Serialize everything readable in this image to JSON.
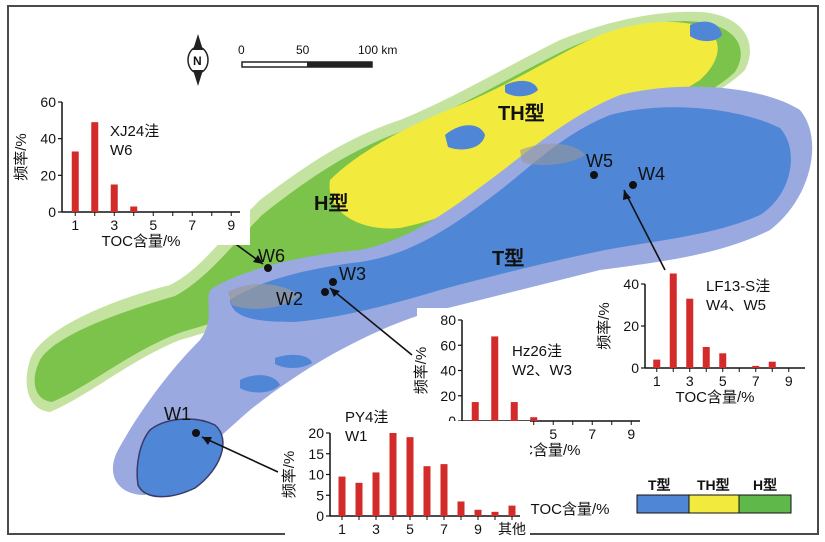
{
  "map": {
    "zone_labels": {
      "th": "TH型",
      "h": "H型",
      "t": "T型"
    },
    "wells": [
      {
        "id": "W1",
        "label": "W1"
      },
      {
        "id": "W2",
        "label": "W2"
      },
      {
        "id": "W3",
        "label": "W3"
      },
      {
        "id": "W4",
        "label": "W4"
      },
      {
        "id": "W5",
        "label": "W5"
      },
      {
        "id": "W6",
        "label": "W6"
      }
    ],
    "north_label": "N",
    "scale": {
      "ticks": [
        "0",
        "50",
        "100 km"
      ]
    },
    "legend": [
      {
        "label": "T型",
        "color": "#4f86d6"
      },
      {
        "label": "TH型",
        "color": "#f2ea3c"
      },
      {
        "label": "H型",
        "color": "#5fb84a"
      }
    ],
    "colors": {
      "t_zone": "#4f86d6",
      "t_halo": "#9aa9e0",
      "th_zone": "#f2ea3c",
      "h_zone": "#7cc34c",
      "h_halo": "#c5e3a0",
      "bar": "#d32a2a",
      "frame": "#4a4a4a"
    }
  },
  "chart_data": [
    {
      "type": "bar",
      "title": "XJ24洼",
      "subtitle": "W6",
      "xlabel": "TOC含量/%",
      "ylabel": "频率/%",
      "ylim": [
        0,
        60
      ],
      "yticks": [
        "0",
        "20",
        "40",
        "60"
      ],
      "xticks": [
        "1",
        "3",
        "5",
        "7",
        "9"
      ],
      "categories": [
        "1",
        "2",
        "3",
        "4",
        "5",
        "6",
        "7",
        "8",
        "9"
      ],
      "values": [
        33,
        49,
        15,
        3,
        0,
        0,
        0,
        0,
        0
      ]
    },
    {
      "type": "bar",
      "title": "Hz26洼",
      "subtitle": "W2、W3",
      "xlabel": "TOC含量/%",
      "ylabel": "频率/%",
      "ylim": [
        0,
        80
      ],
      "yticks": [
        "0",
        "20",
        "40",
        "60",
        "80"
      ],
      "xticks": [
        "1",
        "3",
        "5",
        "7",
        "9"
      ],
      "categories": [
        "1",
        "2",
        "3",
        "4",
        "5",
        "6",
        "7",
        "8",
        "9"
      ],
      "values": [
        15,
        67,
        15,
        3,
        0,
        0,
        0,
        0,
        0
      ]
    },
    {
      "type": "bar",
      "title": "LF13-S洼",
      "subtitle": "W4、W5",
      "xlabel": "TOC含量/%",
      "ylabel": "频率/%",
      "ylim": [
        0,
        40
      ],
      "yticks": [
        "0",
        "20",
        "40"
      ],
      "xticks": [
        "1",
        "3",
        "5",
        "7",
        "9"
      ],
      "categories": [
        "1",
        "2",
        "3",
        "4",
        "5",
        "6",
        "7",
        "8",
        "9"
      ],
      "values": [
        4,
        45,
        33,
        10,
        7,
        0,
        1,
        3,
        0
      ]
    },
    {
      "type": "bar",
      "title": "PY4洼",
      "subtitle": "W1",
      "xlabel": "TOC含量/%",
      "ylabel": "频率/%",
      "ylim": [
        0,
        20
      ],
      "yticks": [
        "0",
        "5",
        "10",
        "15",
        "20"
      ],
      "xticks": [
        "1",
        "3",
        "5",
        "7",
        "9",
        "其他"
      ],
      "categories": [
        "1",
        "2",
        "3",
        "4",
        "5",
        "6",
        "7",
        "8",
        "9",
        "10",
        "其他"
      ],
      "values": [
        9.5,
        8,
        10.5,
        20,
        19,
        12,
        12.5,
        3.5,
        1.5,
        1,
        2.5
      ]
    }
  ]
}
